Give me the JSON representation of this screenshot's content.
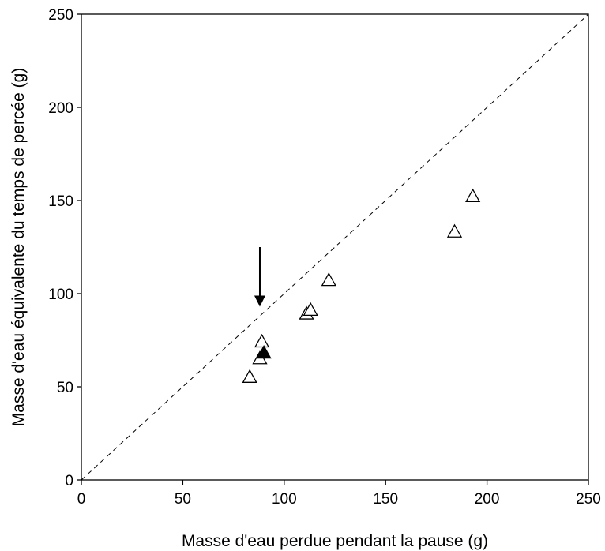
{
  "chart_data": {
    "type": "scatter",
    "xlabel": "Masse d'eau perdue pendant la pause (g)",
    "ylabel": "Masse d'eau équivalente du temps de percée (g)",
    "xlim": [
      0,
      250
    ],
    "ylim": [
      0,
      250
    ],
    "x_ticks": [
      "0",
      "50",
      "100",
      "150",
      "200",
      "250"
    ],
    "y_ticks": [
      "0",
      "50",
      "100",
      "150",
      "200",
      "250"
    ],
    "grid": false,
    "legend": "none",
    "reference_line": {
      "style": "dashed",
      "from": [
        0,
        0
      ],
      "to": [
        250,
        250
      ]
    },
    "series": [
      {
        "marker": "open-triangle",
        "points": [
          {
            "x": 83,
            "y": 55
          },
          {
            "x": 88,
            "y": 65
          },
          {
            "x": 89,
            "y": 74
          },
          {
            "x": 111,
            "y": 89
          },
          {
            "x": 113,
            "y": 91
          },
          {
            "x": 122,
            "y": 107
          },
          {
            "x": 184,
            "y": 133
          },
          {
            "x": 193,
            "y": 152
          }
        ]
      },
      {
        "marker": "filled-triangle",
        "points": [
          {
            "x": 90,
            "y": 68
          }
        ]
      }
    ],
    "annotations": [
      {
        "type": "arrow",
        "x": 88,
        "y_from": 125,
        "y_to": 93
      }
    ]
  }
}
